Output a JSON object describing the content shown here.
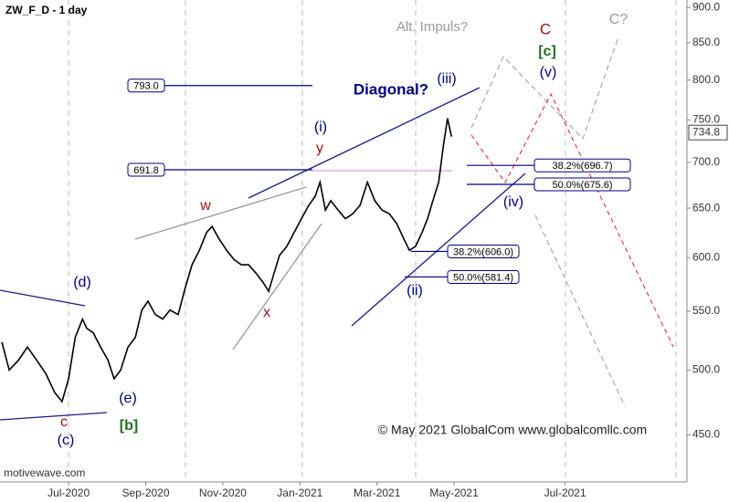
{
  "chart_data": {
    "type": "line",
    "title": "ZW_F_D - 1 day",
    "watermark": "motivewave.com",
    "copyright": "© May 2021 GlobalCom www.globalcomllc.com",
    "y_log": true,
    "ylim": [
      417,
      911
    ],
    "yticks": [
      {
        "value": 450,
        "label": "450.0"
      },
      {
        "value": 500,
        "label": "500.0"
      },
      {
        "value": 550,
        "label": "550.0"
      },
      {
        "value": 600,
        "label": "600.0"
      },
      {
        "value": 650,
        "label": "650.0"
      },
      {
        "value": 700,
        "label": "700.0"
      },
      {
        "value": 750,
        "label": "750.0"
      },
      {
        "value": 800,
        "label": "800.0"
      },
      {
        "value": 850,
        "label": "850.0"
      },
      {
        "value": 900,
        "label": "900.0"
      }
    ],
    "xlim": [
      -1.78,
      16.04
    ],
    "xticks": [
      {
        "value": 0,
        "label": "Jul-2020"
      },
      {
        "value": 2,
        "label": "Sep-2020"
      },
      {
        "value": 4,
        "label": "Nov-2020"
      },
      {
        "value": 6,
        "label": "Jan-2021"
      },
      {
        "value": 8,
        "label": "Mar-2021"
      },
      {
        "value": 10,
        "label": "May-2021"
      },
      {
        "value": 12.88,
        "label": "Jul-2021"
      }
    ],
    "last_price": {
      "value": 734.8,
      "label": "734.8"
    },
    "series": [
      {
        "name": "ZW_F_D",
        "color": "#000000",
        "x": [
          -1.73,
          -1.54,
          -1.3,
          -1.07,
          -0.83,
          -0.59,
          -0.36,
          -0.17,
          0,
          0.17,
          0.36,
          0.47,
          0.64,
          0.83,
          1.02,
          1.18,
          1.35,
          1.54,
          1.73,
          1.9,
          2.06,
          2.25,
          2.44,
          2.63,
          2.84,
          3.03,
          3.2,
          3.39,
          3.58,
          3.72,
          3.91,
          4.1,
          4.29,
          4.48,
          4.67,
          4.86,
          5.05,
          5.19,
          5.33,
          5.47,
          5.66,
          5.85,
          6.04,
          6.23,
          6.4,
          6.52,
          6.66,
          6.8,
          6.99,
          7.18,
          7.37,
          7.56,
          7.75,
          7.94,
          8.13,
          8.32,
          8.51,
          8.7,
          8.84,
          9,
          9.17,
          9.31,
          9.45,
          9.6,
          9.72,
          9.83,
          9.93
        ],
        "values": [
          523,
          500,
          508,
          519,
          508,
          497,
          482,
          475,
          493,
          527,
          543,
          535,
          531,
          519,
          508,
          493,
          500,
          519,
          527,
          551,
          559,
          547,
          543,
          551,
          547,
          572,
          593,
          607,
          625,
          631,
          618,
          607,
          598,
          593,
          593,
          585,
          576,
          568,
          585,
          602,
          611,
          625,
          639,
          653,
          663,
          678,
          648,
          658,
          648,
          639,
          644,
          653,
          678,
          658,
          648,
          644,
          634,
          618,
          607,
          611,
          625,
          639,
          658,
          678,
          719,
          752,
          730
        ]
      }
    ],
    "levels": [
      {
        "value": 793.0,
        "label": "793.0",
        "color": "#000080"
      },
      {
        "value": 691.8,
        "label": "691.8",
        "color": "#000080"
      },
      {
        "value": 696.7,
        "label": "38.2%(696.7)",
        "color": "#000080"
      },
      {
        "value": 675.6,
        "label": "50.0%(675.6)",
        "color": "#000080"
      },
      {
        "value": 606.0,
        "label": "38.2%(606.0)",
        "color": "#000080"
      },
      {
        "value": 581.4,
        "label": "50.0%(581.4)",
        "color": "#000080"
      }
    ],
    "annotations": [
      {
        "text": "Alt. Impuls?",
        "color": "#999999"
      },
      {
        "text": "C",
        "color": "#a01010"
      },
      {
        "text": "[c]",
        "color": "#207020"
      },
      {
        "text": "(v)",
        "color": "#000080"
      },
      {
        "text": "C?",
        "color": "#999999"
      },
      {
        "text": "Diagonal?",
        "color": "#000080"
      },
      {
        "text": "(iii)",
        "color": "#000080"
      },
      {
        "text": "(i)",
        "color": "#000080"
      },
      {
        "text": "y",
        "color": "#a01010"
      },
      {
        "text": "w",
        "color": "#a01010"
      },
      {
        "text": "(iv)",
        "color": "#000080"
      },
      {
        "text": "(d)",
        "color": "#000080"
      },
      {
        "text": "x",
        "color": "#a01010"
      },
      {
        "text": "(ii)",
        "color": "#000080"
      },
      {
        "text": "(e)",
        "color": "#000080"
      },
      {
        "text": "c",
        "color": "#a01010"
      },
      {
        "text": "[b]",
        "color": "#207020"
      },
      {
        "text": "(c)",
        "color": "#000080"
      }
    ]
  }
}
